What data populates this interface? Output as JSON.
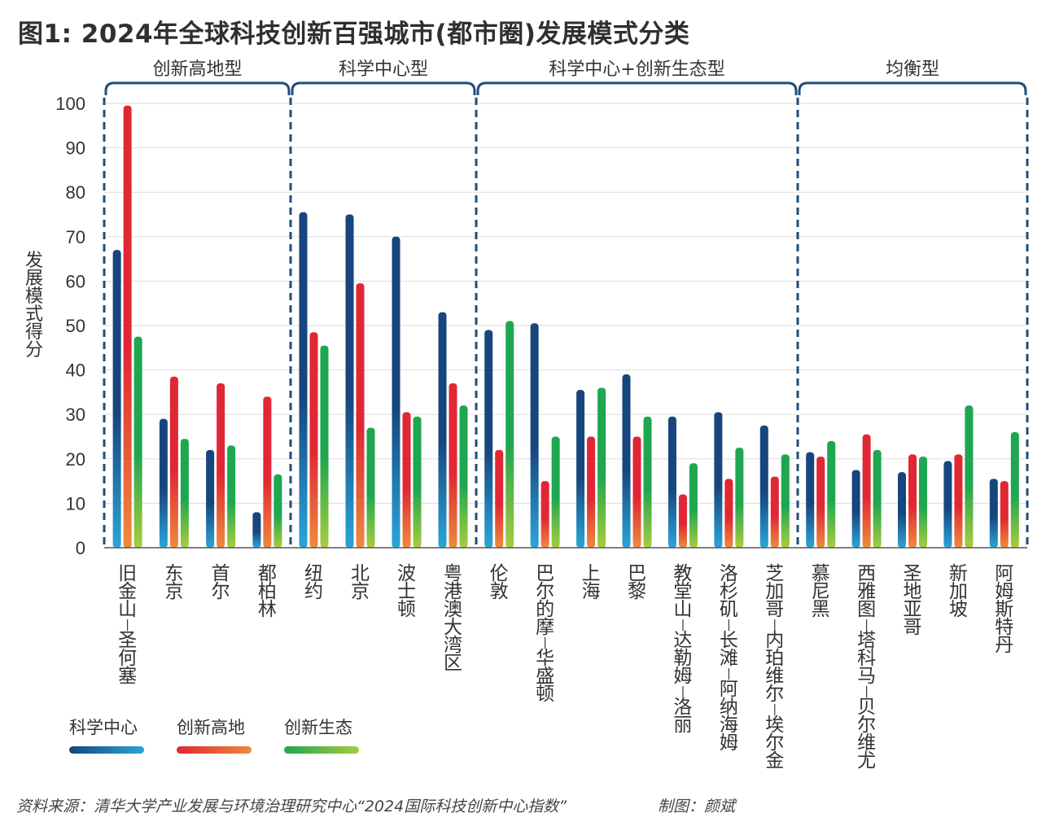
{
  "title": "图1: 2024年全球科技创新百强城市(都市圈)发展模式分类",
  "source": "资料来源：清华大学产业发展与环境治理研究中心“2024国际科技创新中心指数”",
  "credit": "制图：颜斌",
  "colors": {
    "science_dark": "#17467e",
    "science_light": "#2aa5d8",
    "innovation_dark": "#e02733",
    "innovation_light": "#ee8a3c",
    "ecology_dark": "#1ea650",
    "ecology_light": "#a8cc3e",
    "axis": "#333333",
    "bracket": "#1f4e79",
    "grid": "#dddddd"
  },
  "chart_data": {
    "type": "bar",
    "ylabel": "发展模式得分",
    "xlabel": "",
    "ylim": [
      0,
      100
    ],
    "yticks": [
      0,
      10,
      20,
      30,
      40,
      50,
      60,
      70,
      80,
      90,
      100
    ],
    "grid": true,
    "legend_position": "bottom-left",
    "groups": [
      {
        "label": "创新高地型",
        "count": 4
      },
      {
        "label": "科学中心型",
        "count": 4
      },
      {
        "label": "科学中心+创新生态型",
        "count": 7
      },
      {
        "label": "均衡型",
        "count": 5
      }
    ],
    "categories": [
      "旧金山-圣何塞",
      "东京",
      "首尔",
      "都柏林",
      "纽约",
      "北京",
      "波士顿",
      "粤港澳大湾区",
      "伦敦",
      "巴尔的摩-华盛顿",
      "上海",
      "巴黎",
      "教堂山-达勒姆-洛丽",
      "洛杉矶-长滩-阿纳海姆",
      "芝加哥-内珀维尔-埃尔金",
      "慕尼黑",
      "西雅图-塔科马-贝尔维尤",
      "圣地亚哥",
      "新加坡",
      "阿姆斯特丹"
    ],
    "series": [
      {
        "name": "科学中心",
        "values": [
          67,
          29,
          22,
          8,
          75.5,
          75,
          70,
          53,
          49,
          50.5,
          35.5,
          39,
          29.5,
          30.5,
          27.5,
          21.5,
          17.5,
          17,
          19.5,
          15.5
        ]
      },
      {
        "name": "创新高地",
        "values": [
          99.5,
          38.5,
          37,
          34,
          48.5,
          59.5,
          30.5,
          37,
          22,
          15,
          25,
          25,
          12,
          15.5,
          16,
          20.5,
          25.5,
          21,
          21,
          15
        ]
      },
      {
        "name": "创新生态",
        "values": [
          47.5,
          24.5,
          23,
          16.5,
          45.5,
          27,
          29.5,
          32,
          51,
          25,
          36,
          29.5,
          19,
          22.5,
          21,
          24,
          22,
          20.5,
          32,
          26
        ]
      }
    ]
  }
}
